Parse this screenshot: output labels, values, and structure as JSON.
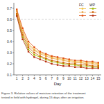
{
  "chart_data": {
    "type": "line",
    "xlabel": "Day",
    "caption": "Figure 3. Relative values of moisture retention of the treatment\ntested in field with hydrogel, during 15 days after an irrigation.",
    "x": [
      1,
      2,
      3,
      4,
      5,
      6,
      7,
      8,
      9,
      10,
      11,
      12,
      13,
      14,
      15
    ],
    "series": [
      {
        "name": "FC",
        "color": "#f0c040",
        "marker": "square",
        "values": [
          0.68,
          0.5,
          0.38,
          0.33,
          0.3,
          0.28,
          0.26,
          0.25,
          0.24,
          0.23,
          0.22,
          0.22,
          0.21,
          0.21,
          0.2
        ]
      },
      {
        "color": "#e8a040",
        "marker": "square",
        "values": [
          0.67,
          0.48,
          0.37,
          0.32,
          0.29,
          0.27,
          0.25,
          0.24,
          0.23,
          0.22,
          0.21,
          0.21,
          0.2,
          0.2,
          0.19
        ]
      },
      {
        "color": "#e05010",
        "marker": "square",
        "values": [
          0.69,
          0.52,
          0.4,
          0.35,
          0.31,
          0.29,
          0.27,
          0.26,
          0.25,
          0.24,
          0.23,
          0.23,
          0.22,
          0.22,
          0.21
        ]
      },
      {
        "name": "WP",
        "color": "#a0b800",
        "marker": "square",
        "values": [
          0.64,
          0.44,
          0.33,
          0.28,
          0.26,
          0.24,
          0.22,
          0.21,
          0.2,
          0.19,
          0.19,
          0.18,
          0.18,
          0.17,
          0.17
        ]
      },
      {
        "color": "#d06000",
        "marker": "square",
        "values": [
          0.65,
          0.46,
          0.35,
          0.3,
          0.27,
          0.25,
          0.23,
          0.22,
          0.21,
          0.2,
          0.2,
          0.19,
          0.19,
          0.18,
          0.18
        ]
      },
      {
        "color": "#b83010",
        "marker": "square",
        "values": [
          0.63,
          0.42,
          0.31,
          0.26,
          0.24,
          0.22,
          0.2,
          0.19,
          0.18,
          0.18,
          0.17,
          0.17,
          0.16,
          0.16,
          0.16
        ]
      }
    ],
    "reference_line": {
      "value": 0.6,
      "color": "#cccccc",
      "line_style": "dashed"
    },
    "xlim": [
      0.5,
      15.5
    ],
    "xticks": [
      1,
      2,
      3,
      4,
      5,
      6,
      7,
      8,
      9,
      10,
      11,
      12,
      13,
      14,
      15
    ],
    "ylim": [
      0.1,
      0.75
    ],
    "yticks": [
      0.1,
      0.2,
      0.3,
      0.4,
      0.5,
      0.6,
      0.7
    ],
    "grid": false,
    "legend": "upper right"
  }
}
